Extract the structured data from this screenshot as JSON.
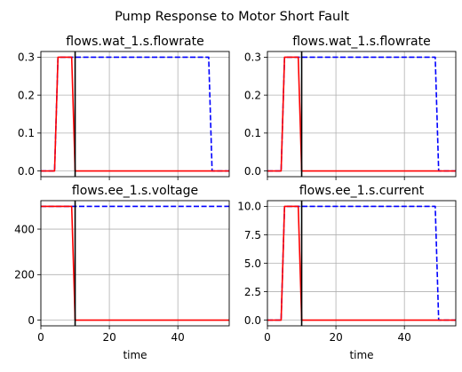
{
  "figure": {
    "suptitle": "Pump Response to Motor Short Fault"
  },
  "chart_data": [
    {
      "type": "line",
      "title": "flows.wat_1.s.flowrate",
      "xlabel": "",
      "ylabel": "",
      "xlim": [
        0,
        55
      ],
      "ylim": [
        -0.015,
        0.315
      ],
      "xticks": [
        0,
        20,
        40
      ],
      "xtick_labels_shown": false,
      "yticks": [
        0.0,
        0.1,
        0.2,
        0.3
      ],
      "ytick_labels": [
        "0.0",
        "0.1",
        "0.2",
        "0.3"
      ],
      "grid": true,
      "fault_time": 10,
      "series": [
        {
          "style": "dashed",
          "color": "#0000ff",
          "x": [
            0,
            4,
            5,
            9,
            10,
            49,
            50,
            55
          ],
          "y": [
            0,
            0,
            0.3,
            0.3,
            0.3,
            0.3,
            0,
            0
          ]
        },
        {
          "style": "solid",
          "color": "#ff0000",
          "x": [
            0,
            4,
            5,
            9,
            10,
            55
          ],
          "y": [
            0,
            0,
            0.3,
            0.3,
            0,
            0
          ]
        }
      ]
    },
    {
      "type": "line",
      "title": "flows.wat_1.s.flowrate",
      "xlabel": "",
      "ylabel": "",
      "xlim": [
        0,
        55
      ],
      "ylim": [
        -0.015,
        0.315
      ],
      "xticks": [
        0,
        20,
        40
      ],
      "xtick_labels_shown": false,
      "yticks": [
        0.0,
        0.1,
        0.2,
        0.3
      ],
      "ytick_labels": [
        "0.0",
        "0.1",
        "0.2",
        "0.3"
      ],
      "grid": true,
      "fault_time": 10,
      "series": [
        {
          "style": "dashed",
          "color": "#0000ff",
          "x": [
            0,
            4,
            5,
            9,
            10,
            49,
            50,
            55
          ],
          "y": [
            0,
            0,
            0.3,
            0.3,
            0.3,
            0.3,
            0,
            0
          ]
        },
        {
          "style": "solid",
          "color": "#ff0000",
          "x": [
            0,
            4,
            5,
            9,
            10,
            55
          ],
          "y": [
            0,
            0,
            0.3,
            0.3,
            0,
            0
          ]
        }
      ]
    },
    {
      "type": "line",
      "title": "flows.ee_1.s.voltage",
      "xlabel": "time",
      "ylabel": "",
      "xlim": [
        0,
        55
      ],
      "ylim": [
        -25,
        525
      ],
      "xticks": [
        0,
        20,
        40
      ],
      "xtick_labels": [
        "0",
        "20",
        "40"
      ],
      "xtick_labels_shown": true,
      "yticks": [
        0,
        200,
        400
      ],
      "ytick_labels": [
        "0",
        "200",
        "400"
      ],
      "grid": true,
      "fault_time": 10,
      "series": [
        {
          "style": "dashed",
          "color": "#0000ff",
          "x": [
            0,
            55
          ],
          "y": [
            500,
            500
          ]
        },
        {
          "style": "solid",
          "color": "#ff0000",
          "x": [
            0,
            9,
            10,
            55
          ],
          "y": [
            500,
            500,
            0,
            0
          ]
        }
      ]
    },
    {
      "type": "line",
      "title": "flows.ee_1.s.current",
      "xlabel": "time",
      "ylabel": "",
      "xlim": [
        0,
        55
      ],
      "ylim": [
        -0.5,
        10.5
      ],
      "xticks": [
        0,
        20,
        40
      ],
      "xtick_labels": [
        "0",
        "20",
        "40"
      ],
      "xtick_labels_shown": true,
      "yticks": [
        0.0,
        2.5,
        5.0,
        7.5,
        10.0
      ],
      "ytick_labels": [
        "0.0",
        "2.5",
        "5.0",
        "7.5",
        "10.0"
      ],
      "grid": true,
      "fault_time": 10,
      "series": [
        {
          "style": "dashed",
          "color": "#0000ff",
          "x": [
            0,
            4,
            5,
            9,
            10,
            49,
            50,
            55
          ],
          "y": [
            0,
            0,
            10,
            10,
            10,
            10,
            0,
            0
          ]
        },
        {
          "style": "solid",
          "color": "#ff0000",
          "x": [
            0,
            4,
            5,
            9,
            10,
            55
          ],
          "y": [
            0,
            0,
            10,
            10,
            0,
            0
          ]
        }
      ]
    }
  ]
}
